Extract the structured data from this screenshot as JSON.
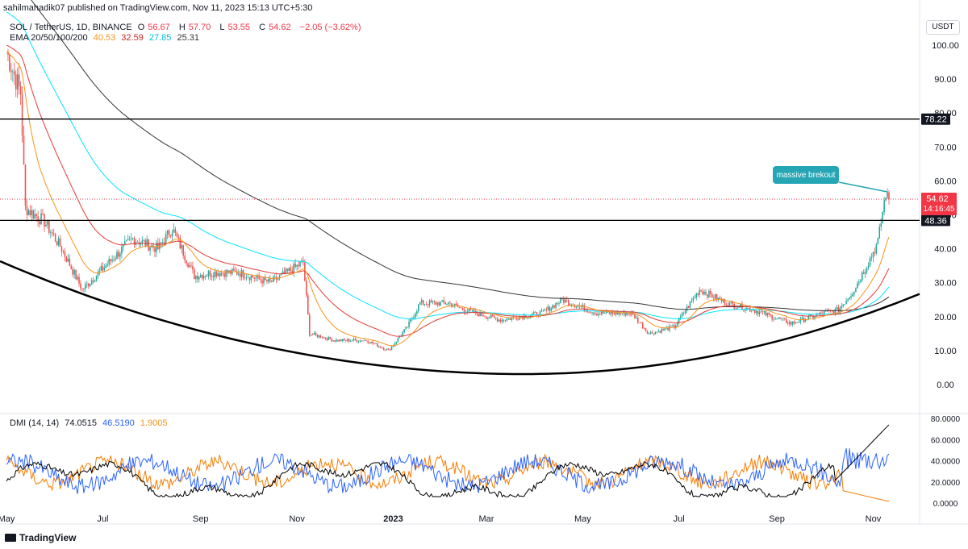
{
  "header": {
    "published_by": "sahilmahadik07 published on TradingView.com, Nov 11, 2023 15:13 UTC+5:30",
    "symbol": "SOL / TetherUS, 1D, BINANCE",
    "ohlc": {
      "o_label": "O",
      "o": "56.67",
      "h_label": "H",
      "h": "57.70",
      "l_label": "L",
      "l": "53.55",
      "c_label": "C",
      "c": "54.62",
      "change": "−2.05 (−3.62%)"
    },
    "ema_label": "EMA 20/50/100/200",
    "ema_values": [
      "40.53",
      "32.59",
      "27.85",
      "25.31"
    ],
    "dmi_label": "DMI (14, 14)",
    "dmi_values": [
      "74.0515",
      "46.5190",
      "1.9005"
    ]
  },
  "currency": "USDT",
  "brand": "TradingView",
  "colors": {
    "up": "#26a69a",
    "down": "#ef5350",
    "ema20": "#f7931a",
    "ema50": "#e53935",
    "ema100": "#00e5ff",
    "ema200": "#333333",
    "adx": "#000000",
    "plus_di": "#2962ff",
    "minus_di": "#f57c00",
    "price_line": "#f23645",
    "annotation": "#26a6b5"
  },
  "chart_data": [
    {
      "type": "candlestick",
      "title": "SOL / TetherUS, 1D, BINANCE",
      "ylim": [
        -8,
        105
      ],
      "y_ticks": [
        "100.00",
        "90.00",
        "80.00",
        "70.00",
        "60.00",
        "50.00",
        "40.00",
        "30.00",
        "20.00",
        "10.00",
        "0.00"
      ],
      "x_ticks": [
        "May",
        "Jul",
        "Sep",
        "Nov",
        "2023",
        "Mar",
        "May",
        "Jul",
        "Sep",
        "Nov"
      ],
      "close_series_approx": [
        {
          "date": "2022-05-01",
          "close": 98
        },
        {
          "date": "2022-05-10",
          "close": 86
        },
        {
          "date": "2022-05-13",
          "close": 52
        },
        {
          "date": "2022-05-25",
          "close": 48
        },
        {
          "date": "2022-06-05",
          "close": 40
        },
        {
          "date": "2022-06-18",
          "close": 28
        },
        {
          "date": "2022-07-05",
          "close": 36
        },
        {
          "date": "2022-07-20",
          "close": 43
        },
        {
          "date": "2022-08-05",
          "close": 40
        },
        {
          "date": "2022-08-14",
          "close": 46
        },
        {
          "date": "2022-08-28",
          "close": 32
        },
        {
          "date": "2022-09-10",
          "close": 33
        },
        {
          "date": "2022-09-25",
          "close": 33
        },
        {
          "date": "2022-10-15",
          "close": 30
        },
        {
          "date": "2022-11-05",
          "close": 36
        },
        {
          "date": "2022-11-09",
          "close": 15
        },
        {
          "date": "2022-11-25",
          "close": 13
        },
        {
          "date": "2022-12-15",
          "close": 13
        },
        {
          "date": "2022-12-29",
          "close": 10
        },
        {
          "date": "2023-01-10",
          "close": 17
        },
        {
          "date": "2023-01-18",
          "close": 24
        },
        {
          "date": "2023-02-05",
          "close": 24
        },
        {
          "date": "2023-02-15",
          "close": 22
        },
        {
          "date": "2023-03-10",
          "close": 19
        },
        {
          "date": "2023-04-05",
          "close": 21
        },
        {
          "date": "2023-04-18",
          "close": 25
        },
        {
          "date": "2023-05-10",
          "close": 21
        },
        {
          "date": "2023-06-01",
          "close": 21
        },
        {
          "date": "2023-06-12",
          "close": 15
        },
        {
          "date": "2023-06-28",
          "close": 17
        },
        {
          "date": "2023-07-14",
          "close": 28
        },
        {
          "date": "2023-07-31",
          "close": 24
        },
        {
          "date": "2023-08-17",
          "close": 22
        },
        {
          "date": "2023-09-10",
          "close": 18
        },
        {
          "date": "2023-09-30",
          "close": 21
        },
        {
          "date": "2023-10-10",
          "close": 22
        },
        {
          "date": "2023-10-20",
          "close": 28
        },
        {
          "date": "2023-10-31",
          "close": 38
        },
        {
          "date": "2023-11-04",
          "close": 42
        },
        {
          "date": "2023-11-09",
          "close": 56.67
        },
        {
          "date": "2023-11-11",
          "close": 54.62
        }
      ],
      "horizontal_levels": [
        {
          "value": 78.22,
          "label": "78.22"
        },
        {
          "value": 48.36,
          "label": "48.36"
        }
      ],
      "last_price": {
        "value": 54.62,
        "label": "54.62",
        "countdown": "14:16:45"
      },
      "annotation": "massive brekout",
      "trendline": "rounded bottom (saucer) support curve"
    },
    {
      "type": "line",
      "title": "DMI (14, 14)",
      "ylim": [
        -5,
        85
      ],
      "y_ticks": [
        "80.0000",
        "60.0000",
        "40.0000",
        "20.0000",
        "0.0000"
      ],
      "series": [
        {
          "name": "ADX",
          "last": 74.0515
        },
        {
          "name": "+DI",
          "last": 46.519
        },
        {
          "name": "-DI",
          "last": 1.9005
        }
      ]
    }
  ]
}
